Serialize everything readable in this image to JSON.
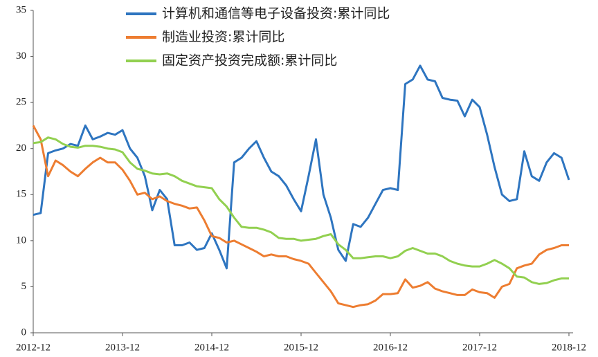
{
  "chart_data": {
    "type": "line",
    "categories": [
      "2012-12",
      null,
      null,
      null,
      null,
      null,
      null,
      null,
      null,
      null,
      null,
      null,
      "2013-12",
      null,
      null,
      null,
      null,
      null,
      null,
      null,
      null,
      null,
      null,
      null,
      "2014-12",
      null,
      null,
      null,
      null,
      null,
      null,
      null,
      null,
      null,
      null,
      null,
      "2015-12",
      null,
      null,
      null,
      null,
      null,
      null,
      null,
      null,
      null,
      null,
      null,
      "2016-12",
      null,
      null,
      null,
      null,
      null,
      null,
      null,
      null,
      null,
      null,
      null,
      "2017-12",
      null,
      null,
      null,
      null,
      null,
      null,
      null,
      null,
      null,
      null,
      null,
      "2018-12"
    ],
    "series": [
      {
        "name": "计算机和通信等电子设备投资:累计同比",
        "color": "#2e75c0",
        "values": [
          12.8,
          13,
          19.5,
          19.8,
          20,
          20.5,
          20.3,
          22.5,
          21,
          21.3,
          21.7,
          21.5,
          22,
          20,
          19,
          17,
          13.3,
          15.5,
          14.5,
          9.5,
          9.5,
          9.8,
          9,
          9.2,
          10.8,
          9,
          7,
          18.5,
          19,
          20,
          20.8,
          19,
          17.5,
          17,
          16,
          14.5,
          13.2,
          17,
          21,
          15,
          12.5,
          9,
          7.8,
          11.8,
          11.5,
          12.5,
          14,
          15.5,
          15.7,
          15.5,
          27,
          27.5,
          29,
          27.5,
          27.3,
          25.5,
          25.3,
          25.2,
          23.5,
          25.3,
          24.5,
          21.5,
          18,
          15,
          14.3,
          14.5,
          19.7,
          17,
          16.5,
          18.5,
          19.5,
          19,
          16.6
        ]
      },
      {
        "name": "制造业投资:累计同比",
        "color": "#ed7d31",
        "values": [
          22.5,
          21,
          17,
          18.7,
          18.2,
          17.5,
          17,
          17.8,
          18.5,
          19,
          18.5,
          18.5,
          17.7,
          16.5,
          15,
          15.2,
          14.5,
          14.8,
          14.3,
          14,
          13.8,
          13.5,
          13.6,
          12.2,
          10.5,
          10.3,
          9.8,
          10,
          9.6,
          9.2,
          8.8,
          8.3,
          8.5,
          8.3,
          8.3,
          8.0,
          7.8,
          7.5,
          6.5,
          5.5,
          4.5,
          3.2,
          3.0,
          2.8,
          3.0,
          3.1,
          3.5,
          4.2,
          4.2,
          4.3,
          5.8,
          4.9,
          5.1,
          5.5,
          4.8,
          4.5,
          4.3,
          4.1,
          4.1,
          4.7,
          4.4,
          4.3,
          3.8,
          5.0,
          5.3,
          7.0,
          7.3,
          7.5,
          8.5,
          9.0,
          9.2,
          9.5,
          9.5
        ]
      },
      {
        "name": "固定资产投资完成额:累计同比",
        "color": "#92d050",
        "values": [
          20.6,
          20.7,
          21.2,
          21,
          20.5,
          20.2,
          20.1,
          20.3,
          20.3,
          20.2,
          20,
          19.9,
          19.6,
          18.5,
          17.8,
          17.6,
          17.3,
          17.2,
          17.3,
          17,
          16.5,
          16.2,
          15.9,
          15.8,
          15.7,
          14.5,
          13.7,
          12.5,
          11.5,
          11.4,
          11.4,
          11.2,
          10.9,
          10.3,
          10.2,
          10.2,
          10.0,
          10.1,
          10.2,
          10.5,
          10.7,
          9.6,
          9.0,
          8.1,
          8.1,
          8.2,
          8.3,
          8.3,
          8.1,
          8.3,
          8.9,
          9.2,
          8.9,
          8.6,
          8.6,
          8.3,
          7.8,
          7.5,
          7.3,
          7.2,
          7.2,
          7.5,
          7.9,
          7.5,
          7.0,
          6.1,
          6.0,
          5.5,
          5.3,
          5.4,
          5.7,
          5.9,
          5.9
        ]
      }
    ],
    "ylim": [
      0,
      35
    ],
    "yticks": [
      0,
      5,
      10,
      15,
      20,
      25,
      30,
      35
    ]
  }
}
